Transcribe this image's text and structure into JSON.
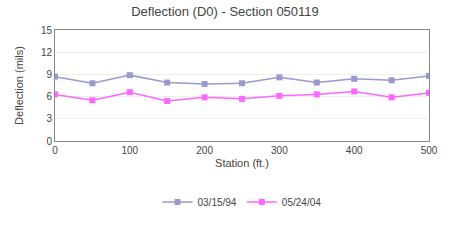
{
  "chart_data": {
    "type": "line",
    "title": "Deflection (D0) - Section 050119",
    "xlabel": "Station (ft.)",
    "ylabel": "Deflection (mils)",
    "x": [
      0,
      50,
      100,
      150,
      200,
      250,
      300,
      350,
      400,
      450,
      500
    ],
    "xlim": [
      0,
      500
    ],
    "xticks": [
      0,
      100,
      200,
      300,
      400,
      500
    ],
    "ylim": [
      0,
      15
    ],
    "yticks": [
      0,
      3,
      6,
      9,
      12,
      15
    ],
    "grid": true,
    "legend": "bottom",
    "marker": "square",
    "series": [
      {
        "name": "03/15/94",
        "color": "#9999cc",
        "values": [
          8.7,
          7.8,
          8.9,
          7.9,
          7.7,
          7.8,
          8.6,
          7.9,
          8.4,
          8.2,
          8.8
        ]
      },
      {
        "name": "05/24/04",
        "color": "#ff66ff",
        "values": [
          6.3,
          5.5,
          6.6,
          5.4,
          5.9,
          5.7,
          6.1,
          6.3,
          6.7,
          5.9,
          6.5
        ]
      }
    ]
  }
}
